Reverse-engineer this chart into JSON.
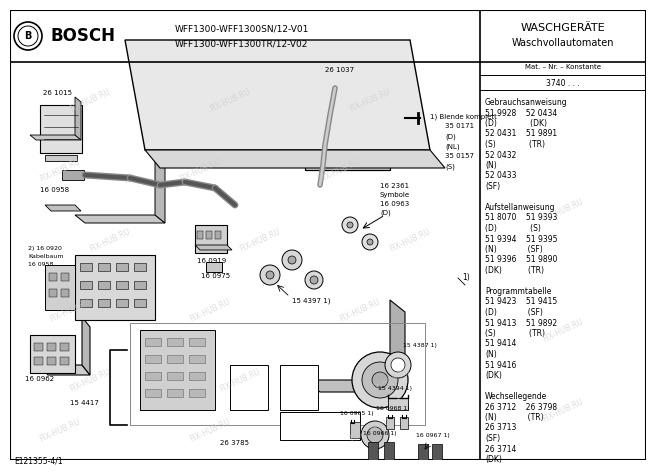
{
  "title_left": "BOSCH",
  "model_line1": "WFF1300-WFF1300SN/12-V01",
  "model_line2": "WFF1300-WFF1300TR/12-V02",
  "title_right_line1": "WASCHGERÄTE",
  "title_right_line2": "Waschvollautomaten",
  "mat_label": "Mat. – Nr. – Konstante",
  "mat_number": "3740 . . .",
  "bottom_left_label": "E121355-4/1",
  "watermark": "FIX-HUB.RU",
  "bg_color": "#ffffff",
  "border_color": "#000000",
  "right_panel_texts": [
    [
      "Gebrauchsanweisung",
      true
    ],
    [
      "51 9928    52 0434",
      false
    ],
    [
      "(D)              (DK)",
      false
    ],
    [
      "52 0431    51 9891",
      false
    ],
    [
      "(S)              (TR)",
      false
    ],
    [
      "52 0432",
      false
    ],
    [
      "(N)",
      false
    ],
    [
      "52 0433",
      false
    ],
    [
      "(SF)",
      false
    ],
    [
      "",
      false
    ],
    [
      "Aufstellanweisung",
      true
    ],
    [
      "51 8070    51 9393",
      false
    ],
    [
      "(D)              (S)",
      false
    ],
    [
      "51 9394    51 9395",
      false
    ],
    [
      "(N)             (SF)",
      false
    ],
    [
      "51 9396    51 9890",
      false
    ],
    [
      "(DK)           (TR)",
      false
    ],
    [
      "",
      false
    ],
    [
      "Programmtabelle",
      true
    ],
    [
      "51 9423    51 9415",
      false
    ],
    [
      "(D)             (SF)",
      false
    ],
    [
      "51 9413    51 9892",
      false
    ],
    [
      "(S)              (TR)",
      false
    ],
    [
      "51 9414",
      false
    ],
    [
      "(N)",
      false
    ],
    [
      "51 9416",
      false
    ],
    [
      "(DK)",
      false
    ],
    [
      "",
      false
    ],
    [
      "Wechsellegende",
      true
    ],
    [
      "26 3712    26 3798",
      false
    ],
    [
      "(N)             (TR)",
      false
    ],
    [
      "26 3713",
      false
    ],
    [
      "(SF)",
      false
    ],
    [
      "26 3714",
      false
    ],
    [
      "(DK)",
      false
    ]
  ]
}
